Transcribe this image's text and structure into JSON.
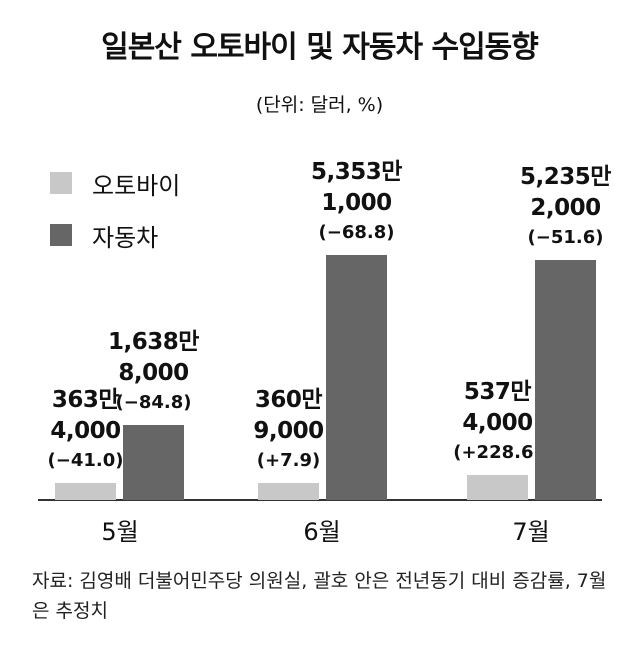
{
  "chart_data": {
    "type": "bar",
    "title": "일본산 오토바이 및 자동차 수입동향",
    "subtitle": "(단위: 달러, %)",
    "categories": [
      "5월",
      "6월",
      "7월"
    ],
    "series": [
      {
        "name": "오토바이",
        "color": "#c8c8c8",
        "values": [
          3634000,
          3609000,
          5374000
        ],
        "value_labels": [
          "363만\n4,000",
          "360만\n9,000",
          "537만\n4,000"
        ],
        "change_labels": [
          "(−41.0)",
          "(+7.9)",
          "(+228.6)"
        ]
      },
      {
        "name": "자동차",
        "color": "#666666",
        "values": [
          16388000,
          53531000,
          52352000
        ],
        "value_labels": [
          "1,638만\n8,000",
          "5,353만\n1,000",
          "5,235만\n2,000"
        ],
        "change_labels": [
          "(−84.8)",
          "(−68.8)",
          "(−51.6)"
        ]
      }
    ],
    "source": "자료: 김영배 더불어민주당 의원실, 괄호 안은 전년동기 대비 증감률, 7월은 추정치"
  }
}
